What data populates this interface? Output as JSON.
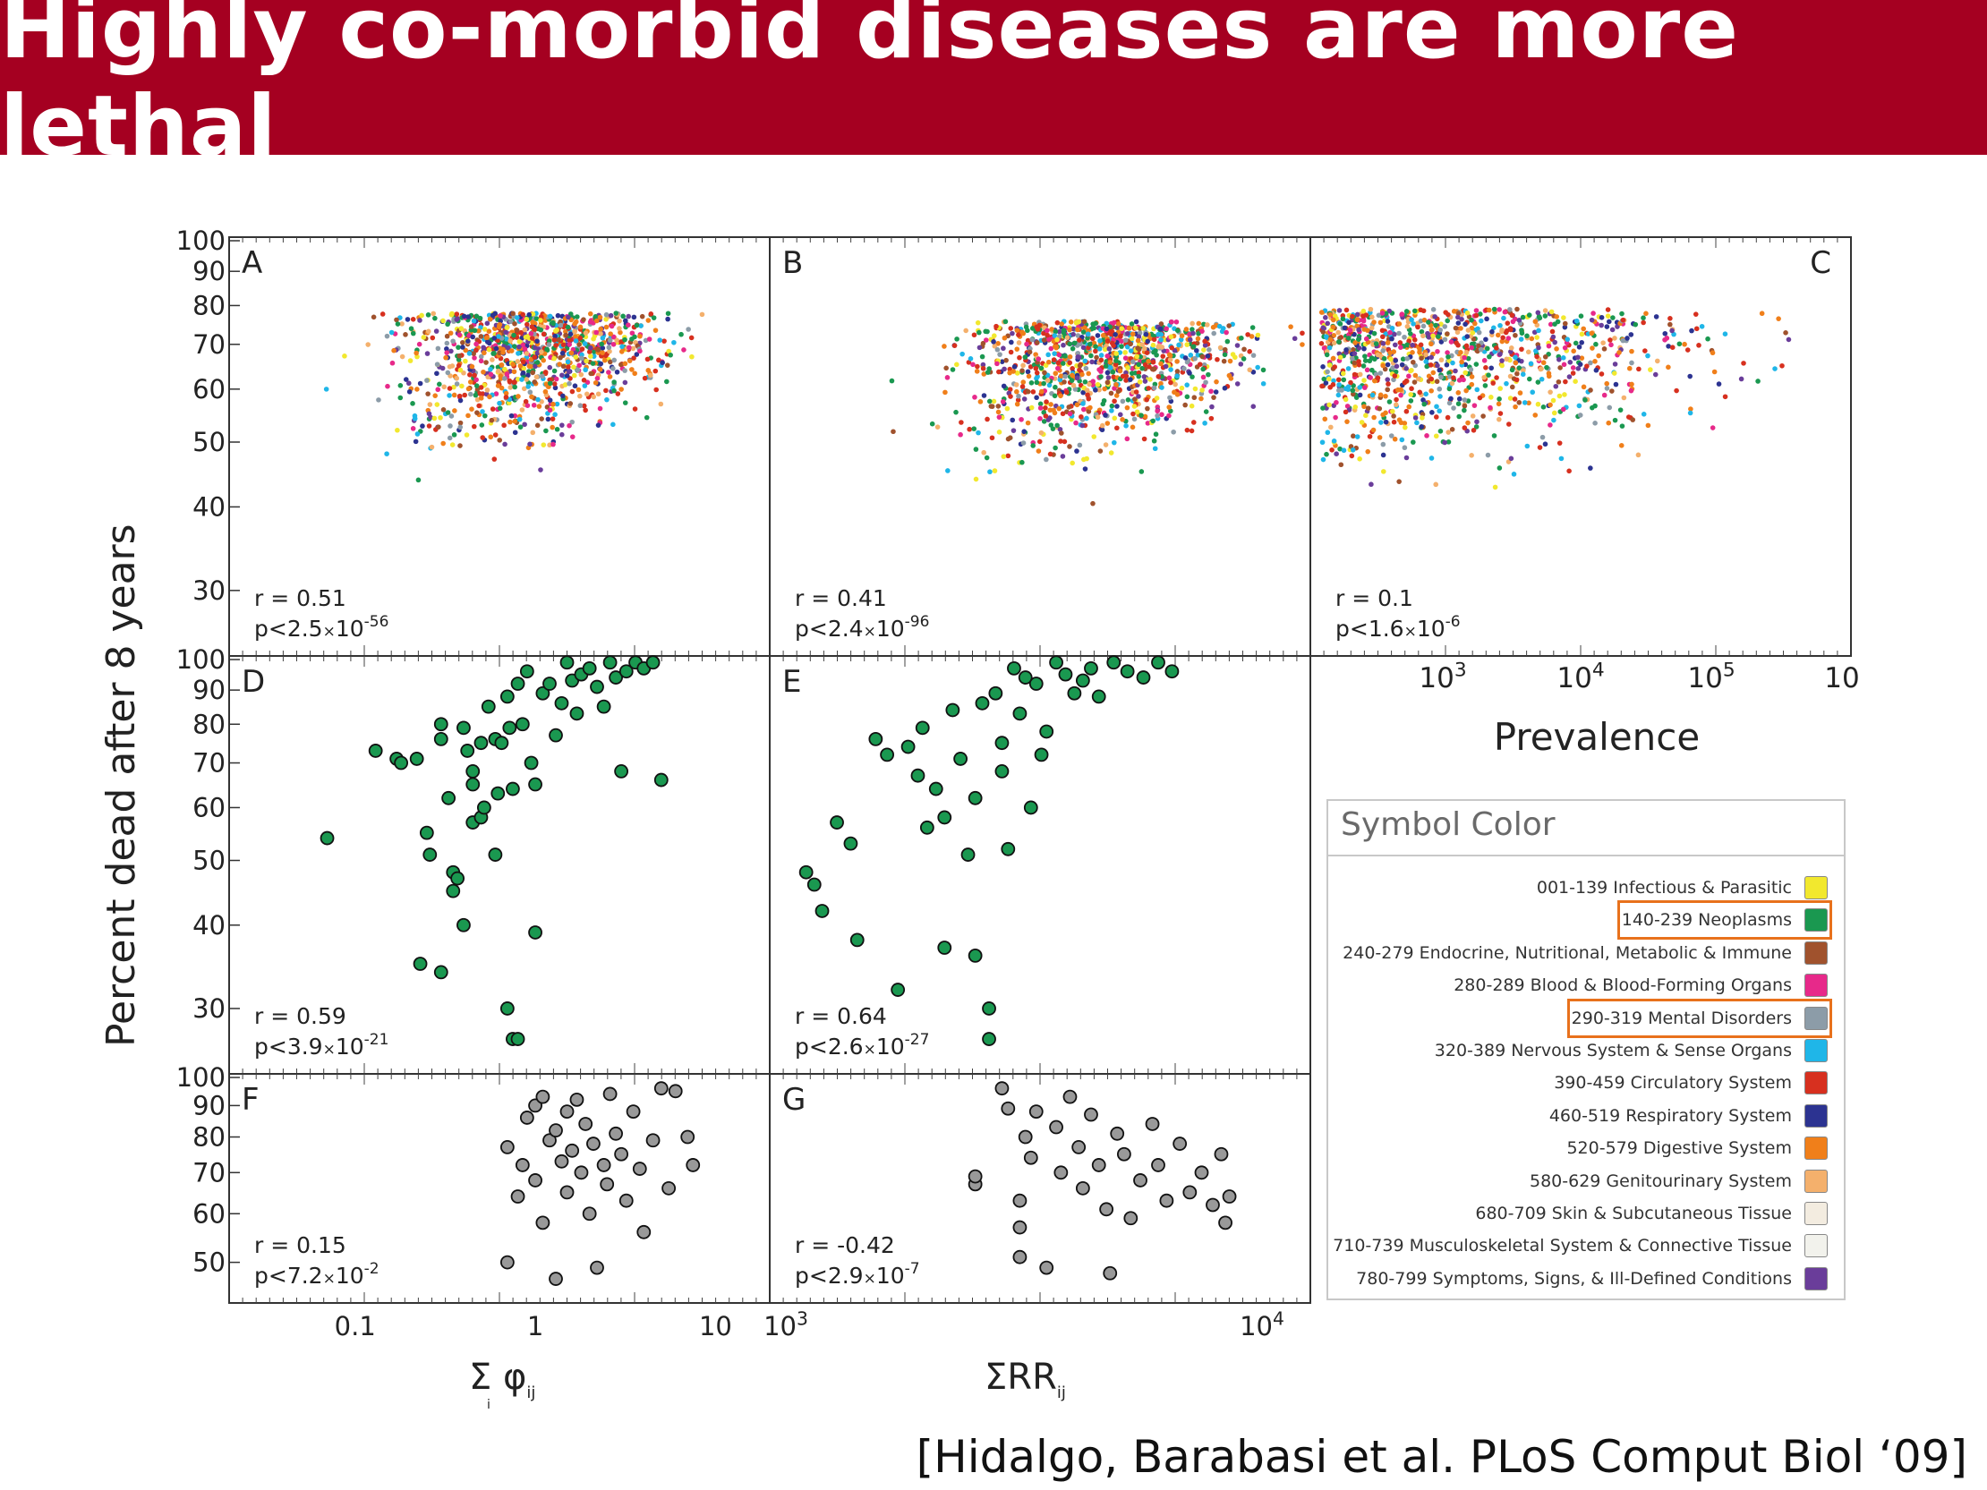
{
  "slide": {
    "title": "Highly co-morbid diseases are more lethal",
    "citation": "[Hidalgo, Barabasi et al. PLoS Comput Biol ‘09]",
    "banner_color": "#a50021"
  },
  "axes": {
    "ylabel": "Percent dead after 8 years",
    "xlabel_phi": "Σ φ",
    "xlabel_phi_sub": "ij",
    "xlabel_phi_under": "i",
    "xlabel_rr": "ΣRR",
    "xlabel_rr_sub": "ij",
    "xlabel_prev": "Prevalence",
    "y_ticks": [
      "100",
      "90",
      "80",
      "70",
      "60",
      "50",
      "40",
      "30"
    ],
    "y_ticks_bottom": [
      "100",
      "90",
      "80",
      "70",
      "60",
      "50"
    ],
    "x_ticks_phi": [
      "0.1",
      "1",
      "10"
    ],
    "x_ticks_rr": [
      {
        "base": "10",
        "exp": "3"
      },
      {
        "base": "10",
        "exp": "4"
      }
    ],
    "x_ticks_prev": [
      {
        "base": "10",
        "exp": "3"
      },
      {
        "base": "10",
        "exp": "4"
      },
      {
        "base": "10",
        "exp": "5"
      },
      {
        "base": "10",
        "exp": ""
      }
    ]
  },
  "chart_data": [
    {
      "panel": "A",
      "type": "scatter",
      "x": "Σφij",
      "y": "Percent dead after 8 years",
      "xscale": "log",
      "yscale": "log",
      "xlim": [
        0.02,
        20
      ],
      "ylim": [
        25,
        100
      ],
      "series_color": "multi",
      "r_text": "r = 0.51",
      "p_text": {
        "prefix": "p<2.5",
        "mult": "×",
        "base": "10",
        "exp": "-56"
      }
    },
    {
      "panel": "B",
      "type": "scatter",
      "x": "ΣRRij",
      "y": "Percent dead after 8 years",
      "xscale": "log",
      "yscale": "log",
      "xlim": [
        1000,
        15000
      ],
      "ylim": [
        25,
        100
      ],
      "series_color": "multi",
      "r_text": "r = 0.41",
      "p_text": {
        "prefix": "p<2.4",
        "mult": "×",
        "base": "10",
        "exp": "-96"
      }
    },
    {
      "panel": "C",
      "type": "scatter",
      "x": "Prevalence",
      "y": "Percent dead after 8 years",
      "xscale": "log",
      "yscale": "log",
      "xlim": [
        120,
        1000000
      ],
      "ylim": [
        25,
        100
      ],
      "series_color": "multi",
      "r_text": "r = 0.1",
      "p_text": {
        "prefix": "p<1.6",
        "mult": "×",
        "base": "10",
        "exp": "-6"
      }
    },
    {
      "panel": "D",
      "type": "scatter",
      "series": "140-239 Neoplasms",
      "color": "#1a9850",
      "xscale": "log",
      "ylim": [
        25,
        100
      ],
      "r_text": "r = 0.59",
      "p_text": {
        "prefix": "p<3.9",
        "mult": "×",
        "base": "10",
        "exp": "-21"
      },
      "points": [
        [
          0.07,
          54
        ],
        [
          0.13,
          73
        ],
        [
          0.17,
          71
        ],
        [
          0.18,
          70
        ],
        [
          0.22,
          71
        ],
        [
          0.25,
          55
        ],
        [
          0.26,
          51
        ],
        [
          0.3,
          80
        ],
        [
          0.3,
          76
        ],
        [
          0.33,
          62
        ],
        [
          0.35,
          48
        ],
        [
          0.35,
          45
        ],
        [
          0.37,
          47
        ],
        [
          0.4,
          40
        ],
        [
          0.4,
          79
        ],
        [
          0.42,
          73
        ],
        [
          0.45,
          68
        ],
        [
          0.45,
          65
        ],
        [
          0.45,
          57
        ],
        [
          0.5,
          75
        ],
        [
          0.5,
          58
        ],
        [
          0.52,
          60
        ],
        [
          0.55,
          85
        ],
        [
          0.6,
          51
        ],
        [
          0.6,
          76
        ],
        [
          0.62,
          63
        ],
        [
          0.65,
          75
        ],
        [
          0.7,
          88
        ],
        [
          0.7,
          30
        ],
        [
          0.72,
          79
        ],
        [
          0.75,
          27
        ],
        [
          0.75,
          64
        ],
        [
          0.8,
          27
        ],
        [
          0.8,
          92
        ],
        [
          0.85,
          80
        ],
        [
          0.9,
          96
        ],
        [
          0.95,
          70
        ],
        [
          1.0,
          65
        ],
        [
          1.0,
          39
        ],
        [
          1.1,
          89
        ],
        [
          1.2,
          92
        ],
        [
          1.3,
          77
        ],
        [
          1.4,
          86
        ],
        [
          1.5,
          99
        ],
        [
          1.6,
          93
        ],
        [
          1.7,
          83
        ],
        [
          1.8,
          95
        ],
        [
          2.0,
          97
        ],
        [
          2.2,
          91
        ],
        [
          2.4,
          85
        ],
        [
          2.6,
          99
        ],
        [
          2.8,
          94
        ],
        [
          3.0,
          68
        ],
        [
          3.2,
          96
        ],
        [
          3.6,
          99
        ],
        [
          4.0,
          97
        ],
        [
          4.5,
          99
        ],
        [
          5.0,
          66
        ],
        [
          0.23,
          35
        ],
        [
          0.3,
          34
        ]
      ]
    },
    {
      "panel": "E",
      "type": "scatter",
      "series": "140-239 Neoplasms",
      "color": "#1a9850",
      "xscale": "log",
      "ylim": [
        25,
        100
      ],
      "r_text": "r = 0.64",
      "p_text": {
        "prefix": "p<2.6",
        "mult": "×",
        "base": "10",
        "exp": "-27"
      },
      "points": [
        [
          1200,
          48
        ],
        [
          1250,
          46
        ],
        [
          1300,
          42
        ],
        [
          1400,
          57
        ],
        [
          1500,
          53
        ],
        [
          1550,
          38
        ],
        [
          1700,
          76
        ],
        [
          1800,
          72
        ],
        [
          1900,
          32
        ],
        [
          2000,
          74
        ],
        [
          2100,
          67
        ],
        [
          2150,
          79
        ],
        [
          2200,
          56
        ],
        [
          2300,
          64
        ],
        [
          2400,
          58
        ],
        [
          2400,
          37
        ],
        [
          2500,
          84
        ],
        [
          2600,
          71
        ],
        [
          2700,
          51
        ],
        [
          2800,
          62
        ],
        [
          2800,
          36
        ],
        [
          2900,
          86
        ],
        [
          3000,
          30
        ],
        [
          3000,
          27
        ],
        [
          3100,
          89
        ],
        [
          3200,
          75
        ],
        [
          3300,
          52
        ],
        [
          3400,
          97
        ],
        [
          3500,
          83
        ],
        [
          3600,
          94
        ],
        [
          3700,
          60
        ],
        [
          3800,
          92
        ],
        [
          4000,
          78
        ],
        [
          4200,
          99
        ],
        [
          4400,
          95
        ],
        [
          4600,
          89
        ],
        [
          4800,
          93
        ],
        [
          5000,
          97
        ],
        [
          5200,
          88
        ],
        [
          5600,
          99
        ],
        [
          6000,
          96
        ],
        [
          6500,
          94
        ],
        [
          7000,
          99
        ],
        [
          7500,
          96
        ],
        [
          3900,
          72
        ],
        [
          3200,
          68
        ]
      ]
    },
    {
      "panel": "F",
      "type": "scatter",
      "series": "290-319 Mental Disorders",
      "color": "#999999",
      "xscale": "log",
      "ylim": [
        45,
        100
      ],
      "r_text": "r = 0.15",
      "p_text": {
        "prefix": "p<7.2",
        "mult": "×",
        "base": "10",
        "exp": "-2"
      },
      "points": [
        [
          0.7,
          77
        ],
        [
          0.7,
          50
        ],
        [
          0.8,
          64
        ],
        [
          0.85,
          72
        ],
        [
          0.9,
          86
        ],
        [
          1.0,
          90
        ],
        [
          1.0,
          68
        ],
        [
          1.1,
          58
        ],
        [
          1.1,
          93
        ],
        [
          1.2,
          79
        ],
        [
          1.3,
          82
        ],
        [
          1.3,
          47
        ],
        [
          1.4,
          73
        ],
        [
          1.5,
          65
        ],
        [
          1.5,
          88
        ],
        [
          1.6,
          76
        ],
        [
          1.7,
          92
        ],
        [
          1.8,
          70
        ],
        [
          1.9,
          84
        ],
        [
          2.0,
          60
        ],
        [
          2.1,
          78
        ],
        [
          2.2,
          49
        ],
        [
          2.4,
          72
        ],
        [
          2.5,
          67
        ],
        [
          2.6,
          94
        ],
        [
          2.8,
          81
        ],
        [
          3.0,
          75
        ],
        [
          3.2,
          63
        ],
        [
          3.5,
          88
        ],
        [
          3.8,
          71
        ],
        [
          4.0,
          56
        ],
        [
          4.5,
          79
        ],
        [
          5.0,
          96
        ],
        [
          5.5,
          66
        ],
        [
          6.0,
          95
        ],
        [
          7.0,
          80
        ],
        [
          7.5,
          72
        ]
      ]
    },
    {
      "panel": "G",
      "type": "scatter",
      "series": "290-319 Mental Disorders",
      "color": "#999999",
      "xscale": "log",
      "ylim": [
        45,
        100
      ],
      "r_text": "r = -0.42",
      "p_text": {
        "prefix": "p<2.9",
        "mult": "×",
        "base": "10",
        "exp": "-7"
      },
      "points": [
        [
          2800,
          67
        ],
        [
          2800,
          69
        ],
        [
          3200,
          96
        ],
        [
          3300,
          89
        ],
        [
          3500,
          63
        ],
        [
          3500,
          57
        ],
        [
          3500,
          51
        ],
        [
          3600,
          80
        ],
        [
          3700,
          74
        ],
        [
          3800,
          88
        ],
        [
          4000,
          49
        ],
        [
          4200,
          83
        ],
        [
          4300,
          70
        ],
        [
          4500,
          93
        ],
        [
          4700,
          77
        ],
        [
          4800,
          66
        ],
        [
          5000,
          87
        ],
        [
          5200,
          72
        ],
        [
          5400,
          61
        ],
        [
          5500,
          48
        ],
        [
          5700,
          81
        ],
        [
          5900,
          75
        ],
        [
          6100,
          59
        ],
        [
          6400,
          68
        ],
        [
          6800,
          84
        ],
        [
          7000,
          72
        ],
        [
          7300,
          63
        ],
        [
          7800,
          78
        ],
        [
          8200,
          65
        ],
        [
          8700,
          70
        ],
        [
          9200,
          62
        ],
        [
          9600,
          75
        ],
        [
          10000,
          64
        ],
        [
          9800,
          58
        ]
      ]
    }
  ],
  "legend": {
    "title": "Symbol Color",
    "items": [
      {
        "label": "001-139 Infectious & Parasitic",
        "color": "#f2e82e"
      },
      {
        "label": "140-239 Neoplasms",
        "color": "#1a9850"
      },
      {
        "label": "240-279 Endocrine, Nutritional, Metabolic & Immune",
        "color": "#a0522d"
      },
      {
        "label": "280-289 Blood & Blood-Forming Organs",
        "color": "#e7298a"
      },
      {
        "label": "290-319 Mental Disorders",
        "color": "#8c9ca8"
      },
      {
        "label": "320-389 Nervous System & Sense Organs",
        "color": "#1fb6e8"
      },
      {
        "label": "390-459 Circulatory System",
        "color": "#d7301f"
      },
      {
        "label": "460-519 Respiratory System",
        "color": "#2c3391"
      },
      {
        "label": "520-579 Digestive System",
        "color": "#f07f1a"
      },
      {
        "label": "580-629 Genitourinary System",
        "color": "#f4b06c"
      },
      {
        "label": "680-709 Skin & Subcutaneous Tissue",
        "color": "#f3ece0"
      },
      {
        "label": "710-739 Musculoskeletal System & Connective Tissue",
        "color": "#f2f2ec"
      },
      {
        "label": "780-799 Symptoms, Signs, & Ill-Defined Conditions",
        "color": "#6a3d9a"
      }
    ],
    "highlighted": [
      1,
      4
    ],
    "highlight_color": "#e8711c"
  }
}
